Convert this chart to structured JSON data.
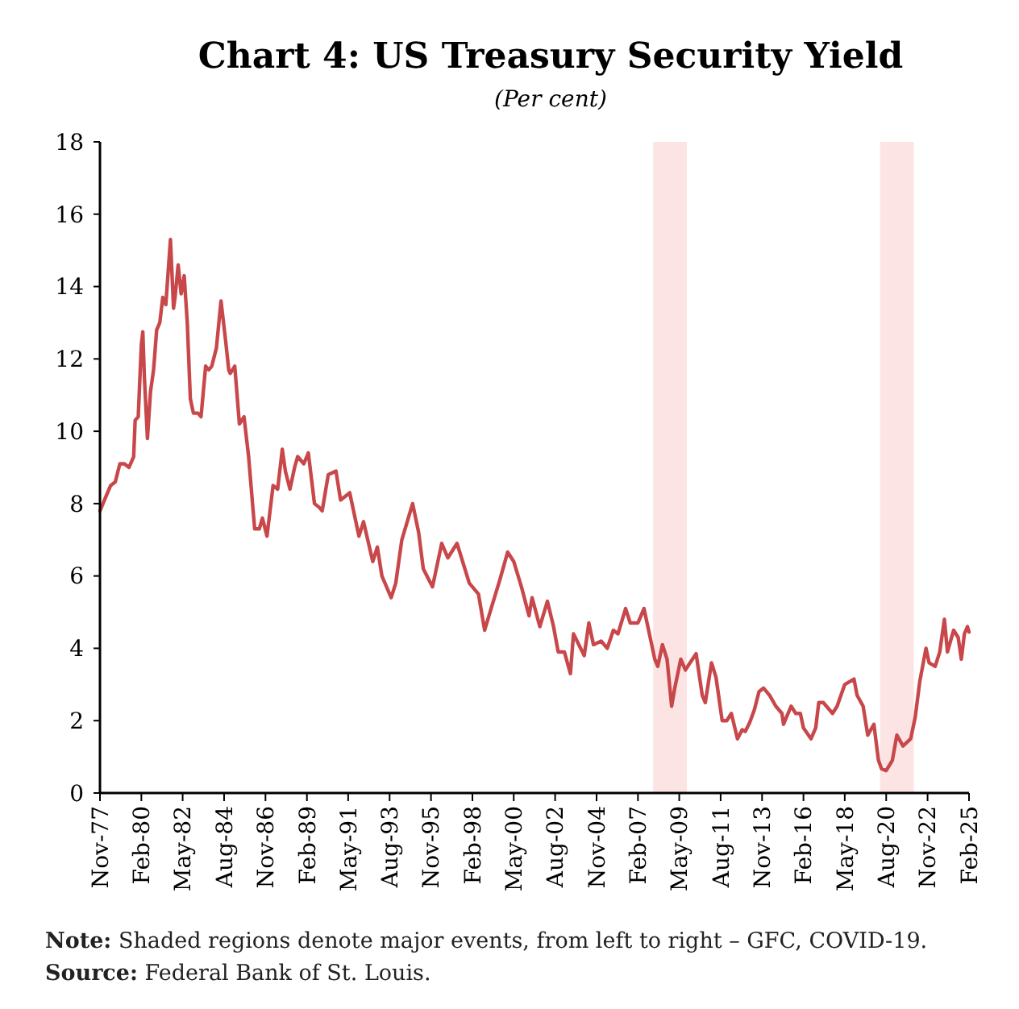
{
  "chart_data": {
    "type": "line",
    "title": "Chart 4: US Treasury Security Yield",
    "subtitle": "(Per cent)",
    "xlim": [
      "1977-11",
      "2025-02"
    ],
    "xticks": [
      {
        "value": "1977-11",
        "label": "Nov-77"
      },
      {
        "value": "1980-02",
        "label": "Feb-80"
      },
      {
        "value": "1982-05",
        "label": "May-82"
      },
      {
        "value": "1984-08",
        "label": "Aug-84"
      },
      {
        "value": "1986-11",
        "label": "Nov-86"
      },
      {
        "value": "1989-02",
        "label": "Feb-89"
      },
      {
        "value": "1991-05",
        "label": "May-91"
      },
      {
        "value": "1993-08",
        "label": "Aug-93"
      },
      {
        "value": "1995-11",
        "label": "Nov-95"
      },
      {
        "value": "1998-02",
        "label": "Feb-98"
      },
      {
        "value": "2000-05",
        "label": "May-00"
      },
      {
        "value": "2002-08",
        "label": "Aug-02"
      },
      {
        "value": "2004-11",
        "label": "Nov-04"
      },
      {
        "value": "2007-02",
        "label": "Feb-07"
      },
      {
        "value": "2009-05",
        "label": "May-09"
      },
      {
        "value": "2011-08",
        "label": "Aug-11"
      },
      {
        "value": "2013-11",
        "label": "Nov-13"
      },
      {
        "value": "2016-02",
        "label": "Feb-16"
      },
      {
        "value": "2018-05",
        "label": "May-18"
      },
      {
        "value": "2020-08",
        "label": "Aug-20"
      },
      {
        "value": "2022-11",
        "label": "Nov-22"
      },
      {
        "value": "2025-02",
        "label": "Feb-25"
      }
    ],
    "ylim": [
      0,
      18
    ],
    "yticks": [
      0,
      2,
      4,
      6,
      8,
      10,
      12,
      14,
      16,
      18
    ],
    "bands": [
      {
        "axis": "x",
        "from": "2007-12",
        "to": "2009-10",
        "color": "#fce4e4"
      },
      {
        "axis": "x",
        "from": "2020-04",
        "to": "2022-02",
        "color": "#fce4e4"
      }
    ],
    "series": [
      {
        "color": "#c8474a",
        "x": [
          "1977-11",
          "1978-03",
          "1978-06",
          "1978-09",
          "1978-12",
          "1979-03",
          "1979-06",
          "1979-09",
          "1979-10",
          "1979-12",
          "1980-02",
          "1980-03",
          "1980-04",
          "1980-06",
          "1980-08",
          "1980-10",
          "1980-12",
          "1981-02",
          "1981-04",
          "1981-06",
          "1981-09",
          "1981-11",
          "1981-12",
          "1982-02",
          "1982-04",
          "1982-06",
          "1982-08",
          "1982-10",
          "1982-12",
          "1983-03",
          "1983-05",
          "1983-08",
          "1983-10",
          "1983-12",
          "1984-03",
          "1984-06",
          "1984-09",
          "1984-11",
          "1984-12",
          "1985-03",
          "1985-06",
          "1985-09",
          "1985-12",
          "1986-03",
          "1986-04",
          "1986-07",
          "1986-09",
          "1986-12",
          "1987-04",
          "1987-07",
          "1987-10",
          "1987-12",
          "1988-03",
          "1988-06",
          "1988-08",
          "1988-12",
          "1989-03",
          "1989-07",
          "1989-10",
          "1989-12",
          "1990-04",
          "1990-09",
          "1990-12",
          "1991-06",
          "1991-12",
          "1992-03",
          "1992-09",
          "1992-12",
          "1993-03",
          "1993-09",
          "1993-12",
          "1994-04",
          "1994-11",
          "1995-03",
          "1995-06",
          "1995-12",
          "1996-06",
          "1996-10",
          "1997-04",
          "1997-12",
          "1998-06",
          "1998-10",
          "1999-03",
          "1999-08",
          "2000-01",
          "2000-05",
          "2000-10",
          "2001-03",
          "2001-05",
          "2001-10",
          "2002-03",
          "2002-07",
          "2002-10",
          "2003-02",
          "2003-06",
          "2003-08",
          "2004-03",
          "2004-06",
          "2004-09",
          "2005-02",
          "2005-06",
          "2005-10",
          "2006-01",
          "2006-06",
          "2006-09",
          "2007-02",
          "2007-06",
          "2007-09",
          "2008-01",
          "2008-03",
          "2008-06",
          "2008-09",
          "2008-12",
          "2009-02",
          "2009-06",
          "2009-09",
          "2009-12",
          "2010-04",
          "2010-08",
          "2010-10",
          "2011-02",
          "2011-05",
          "2011-09",
          "2011-12",
          "2012-03",
          "2012-07",
          "2012-10",
          "2012-12",
          "2013-03",
          "2013-06",
          "2013-09",
          "2013-12",
          "2014-04",
          "2014-08",
          "2014-12",
          "2015-01",
          "2015-06",
          "2015-09",
          "2015-12",
          "2016-02",
          "2016-07",
          "2016-10",
          "2016-12",
          "2017-03",
          "2017-09",
          "2017-12",
          "2018-05",
          "2018-11",
          "2019-01",
          "2019-05",
          "2019-08",
          "2019-12",
          "2020-03",
          "2020-05",
          "2020-08",
          "2020-12",
          "2021-03",
          "2021-07",
          "2021-12",
          "2022-03",
          "2022-06",
          "2022-10",
          "2022-12",
          "2023-04",
          "2023-07",
          "2023-10",
          "2023-12",
          "2024-04",
          "2024-07",
          "2024-09",
          "2024-11",
          "2025-01",
          "2025-02"
        ],
        "values": [
          7.8,
          8.2,
          8.5,
          8.6,
          9.1,
          9.1,
          9.0,
          9.3,
          10.3,
          10.4,
          12.4,
          12.75,
          11.5,
          9.8,
          11.1,
          11.7,
          12.8,
          13.0,
          13.7,
          13.5,
          15.3,
          13.4,
          13.7,
          14.6,
          13.8,
          14.3,
          13.0,
          10.9,
          10.5,
          10.5,
          10.4,
          11.8,
          11.7,
          11.8,
          12.3,
          13.6,
          12.5,
          11.7,
          11.6,
          11.8,
          10.2,
          10.4,
          9.3,
          7.8,
          7.3,
          7.3,
          7.6,
          7.1,
          8.5,
          8.4,
          9.5,
          8.9,
          8.4,
          9.0,
          9.3,
          9.1,
          9.4,
          8.0,
          7.9,
          7.8,
          8.8,
          8.9,
          8.1,
          8.3,
          7.1,
          7.5,
          6.4,
          6.8,
          6.0,
          5.4,
          5.8,
          7.0,
          8.0,
          7.2,
          6.2,
          5.7,
          6.9,
          6.5,
          6.9,
          5.8,
          5.5,
          4.5,
          5.2,
          5.9,
          6.66,
          6.4,
          5.7,
          4.9,
          5.4,
          4.6,
          5.3,
          4.6,
          3.9,
          3.9,
          3.3,
          4.4,
          3.8,
          4.7,
          4.1,
          4.2,
          4.0,
          4.5,
          4.4,
          5.1,
          4.7,
          4.7,
          5.1,
          4.5,
          3.7,
          3.5,
          4.1,
          3.7,
          2.4,
          2.9,
          3.7,
          3.4,
          3.6,
          3.85,
          2.7,
          2.5,
          3.6,
          3.2,
          2.0,
          2.0,
          2.2,
          1.5,
          1.75,
          1.7,
          1.95,
          2.3,
          2.8,
          2.9,
          2.7,
          2.4,
          2.2,
          1.9,
          2.4,
          2.2,
          2.2,
          1.8,
          1.5,
          1.8,
          2.5,
          2.5,
          2.2,
          2.4,
          3.0,
          3.15,
          2.7,
          2.4,
          1.6,
          1.9,
          0.9,
          0.67,
          0.62,
          0.9,
          1.6,
          1.3,
          1.5,
          2.1,
          3.1,
          4.0,
          3.6,
          3.5,
          3.9,
          4.8,
          3.9,
          4.5,
          4.3,
          3.7,
          4.4,
          4.6,
          4.45
        ]
      }
    ],
    "annotations": [
      "Note: Shaded regions denote major events, from left to right – GFC, COVID-19.",
      "Source: Federal Bank of St. Louis."
    ]
  }
}
